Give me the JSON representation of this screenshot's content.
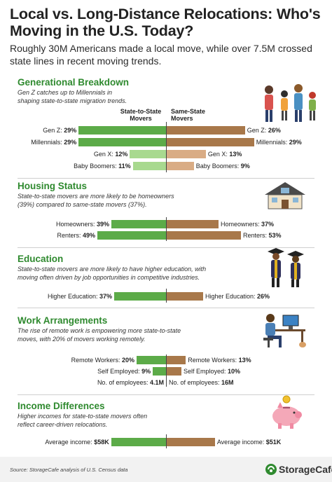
{
  "title": "Local vs. Long-Distance Relocations: Who's Moving in the U.S. Today?",
  "subtitle": "Roughly 30M Americans made a local move, while over 7.5M crossed state lines in recent moving trends.",
  "column_headers": {
    "left": "State-to-State Movers",
    "right": "Same-State Movers"
  },
  "colors": {
    "left_dark": "#5cab48",
    "left_light": "#a8d98f",
    "right_dark": "#a8784a",
    "right_light": "#d9ac85",
    "section_title": "#2f8a2f"
  },
  "sections": [
    {
      "title": "Generational Breakdown",
      "desc": "Gen Z catches up to Millennials in shaping state-to-state migration trends.",
      "icon": "family-icon"
    },
    {
      "title": "Housing Status",
      "desc": "State-to-state movers are more likely to be homeowners (39%) compared to same-state movers (37%).",
      "icon": "house-icon"
    },
    {
      "title": "Education",
      "desc": "State-to-state movers are more likely to have higher education, with moving often driven by job opportunities in competitive industries.",
      "icon": "graduates-icon"
    },
    {
      "title": "Work Arrangements",
      "desc": "The rise of remote work is empowering more state-to-state moves, with 20% of movers working remotely.",
      "icon": "remote-worker-icon"
    },
    {
      "title": "Income Differences",
      "desc": "Higher incomes for state-to-state movers often reflect career-driven relocations.",
      "icon": "piggy-bank-icon"
    }
  ],
  "chart_data": [
    {
      "type": "bar",
      "title": "Generational Breakdown",
      "categories": [
        "Gen Z",
        "Millennials",
        "Gen X",
        "Baby Boomers"
      ],
      "series": [
        {
          "name": "State-to-State Movers",
          "values": [
            29,
            29,
            12,
            11
          ],
          "labels": [
            "Gen Z: 29%",
            "Millennials: 29%",
            "Gen X: 12%",
            "Baby Boomers: 11%"
          ]
        },
        {
          "name": "Same-State Movers",
          "values": [
            26,
            29,
            13,
            9
          ],
          "labels": [
            "Gen Z: 26%",
            "Millennials: 29%",
            "Gen X: 13%",
            "Baby Boomers: 9%"
          ]
        }
      ]
    },
    {
      "type": "bar",
      "title": "Housing Status",
      "categories": [
        "Homeowners",
        "Renters"
      ],
      "series": [
        {
          "name": "State-to-State Movers",
          "values": [
            39,
            49
          ],
          "labels": [
            "Homeowners: 39%",
            "Renters: 49%"
          ]
        },
        {
          "name": "Same-State Movers",
          "values": [
            37,
            53
          ],
          "labels": [
            "Homeowners: 37%",
            "Renters: 53%"
          ]
        }
      ]
    },
    {
      "type": "bar",
      "title": "Education",
      "categories": [
        "Higher Education"
      ],
      "series": [
        {
          "name": "State-to-State Movers",
          "values": [
            37
          ],
          "labels": [
            "Higher Education: 37%"
          ]
        },
        {
          "name": "Same-State Movers",
          "values": [
            26
          ],
          "labels": [
            "Higher Education: 26%"
          ]
        }
      ]
    },
    {
      "type": "bar",
      "title": "Work Arrangements",
      "categories": [
        "Remote Workers",
        "Self Employed",
        "No. of employees"
      ],
      "series": [
        {
          "name": "State-to-State Movers",
          "values": [
            20,
            9,
            null
          ],
          "labels": [
            "Remote Workers: 20%",
            "Self Employed: 9%",
            "No. of employees: 4.1M"
          ]
        },
        {
          "name": "Same-State Movers",
          "values": [
            13,
            10,
            null
          ],
          "labels": [
            "Remote Workers: 13%",
            "Self Employed: 10%",
            "No. of employees: 16M"
          ]
        }
      ],
      "extra_values": {
        "No. of employees": {
          "State-to-State Movers": "4.1M",
          "Same-State Movers": "16M"
        }
      }
    },
    {
      "type": "bar",
      "title": "Income Differences",
      "categories": [
        "Average income"
      ],
      "series": [
        {
          "name": "State-to-State Movers",
          "values": [
            58000
          ],
          "labels": [
            "Average income: $58K"
          ]
        },
        {
          "name": "Same-State Movers",
          "values": [
            51000
          ],
          "labels": [
            "Average income: $51K"
          ]
        }
      ]
    }
  ],
  "footer": {
    "source": "Source: StorageCafe analysis of U.S. Census data",
    "brand": "StorageCafe",
    "brand_icon": "storagecafe-logo-icon"
  }
}
